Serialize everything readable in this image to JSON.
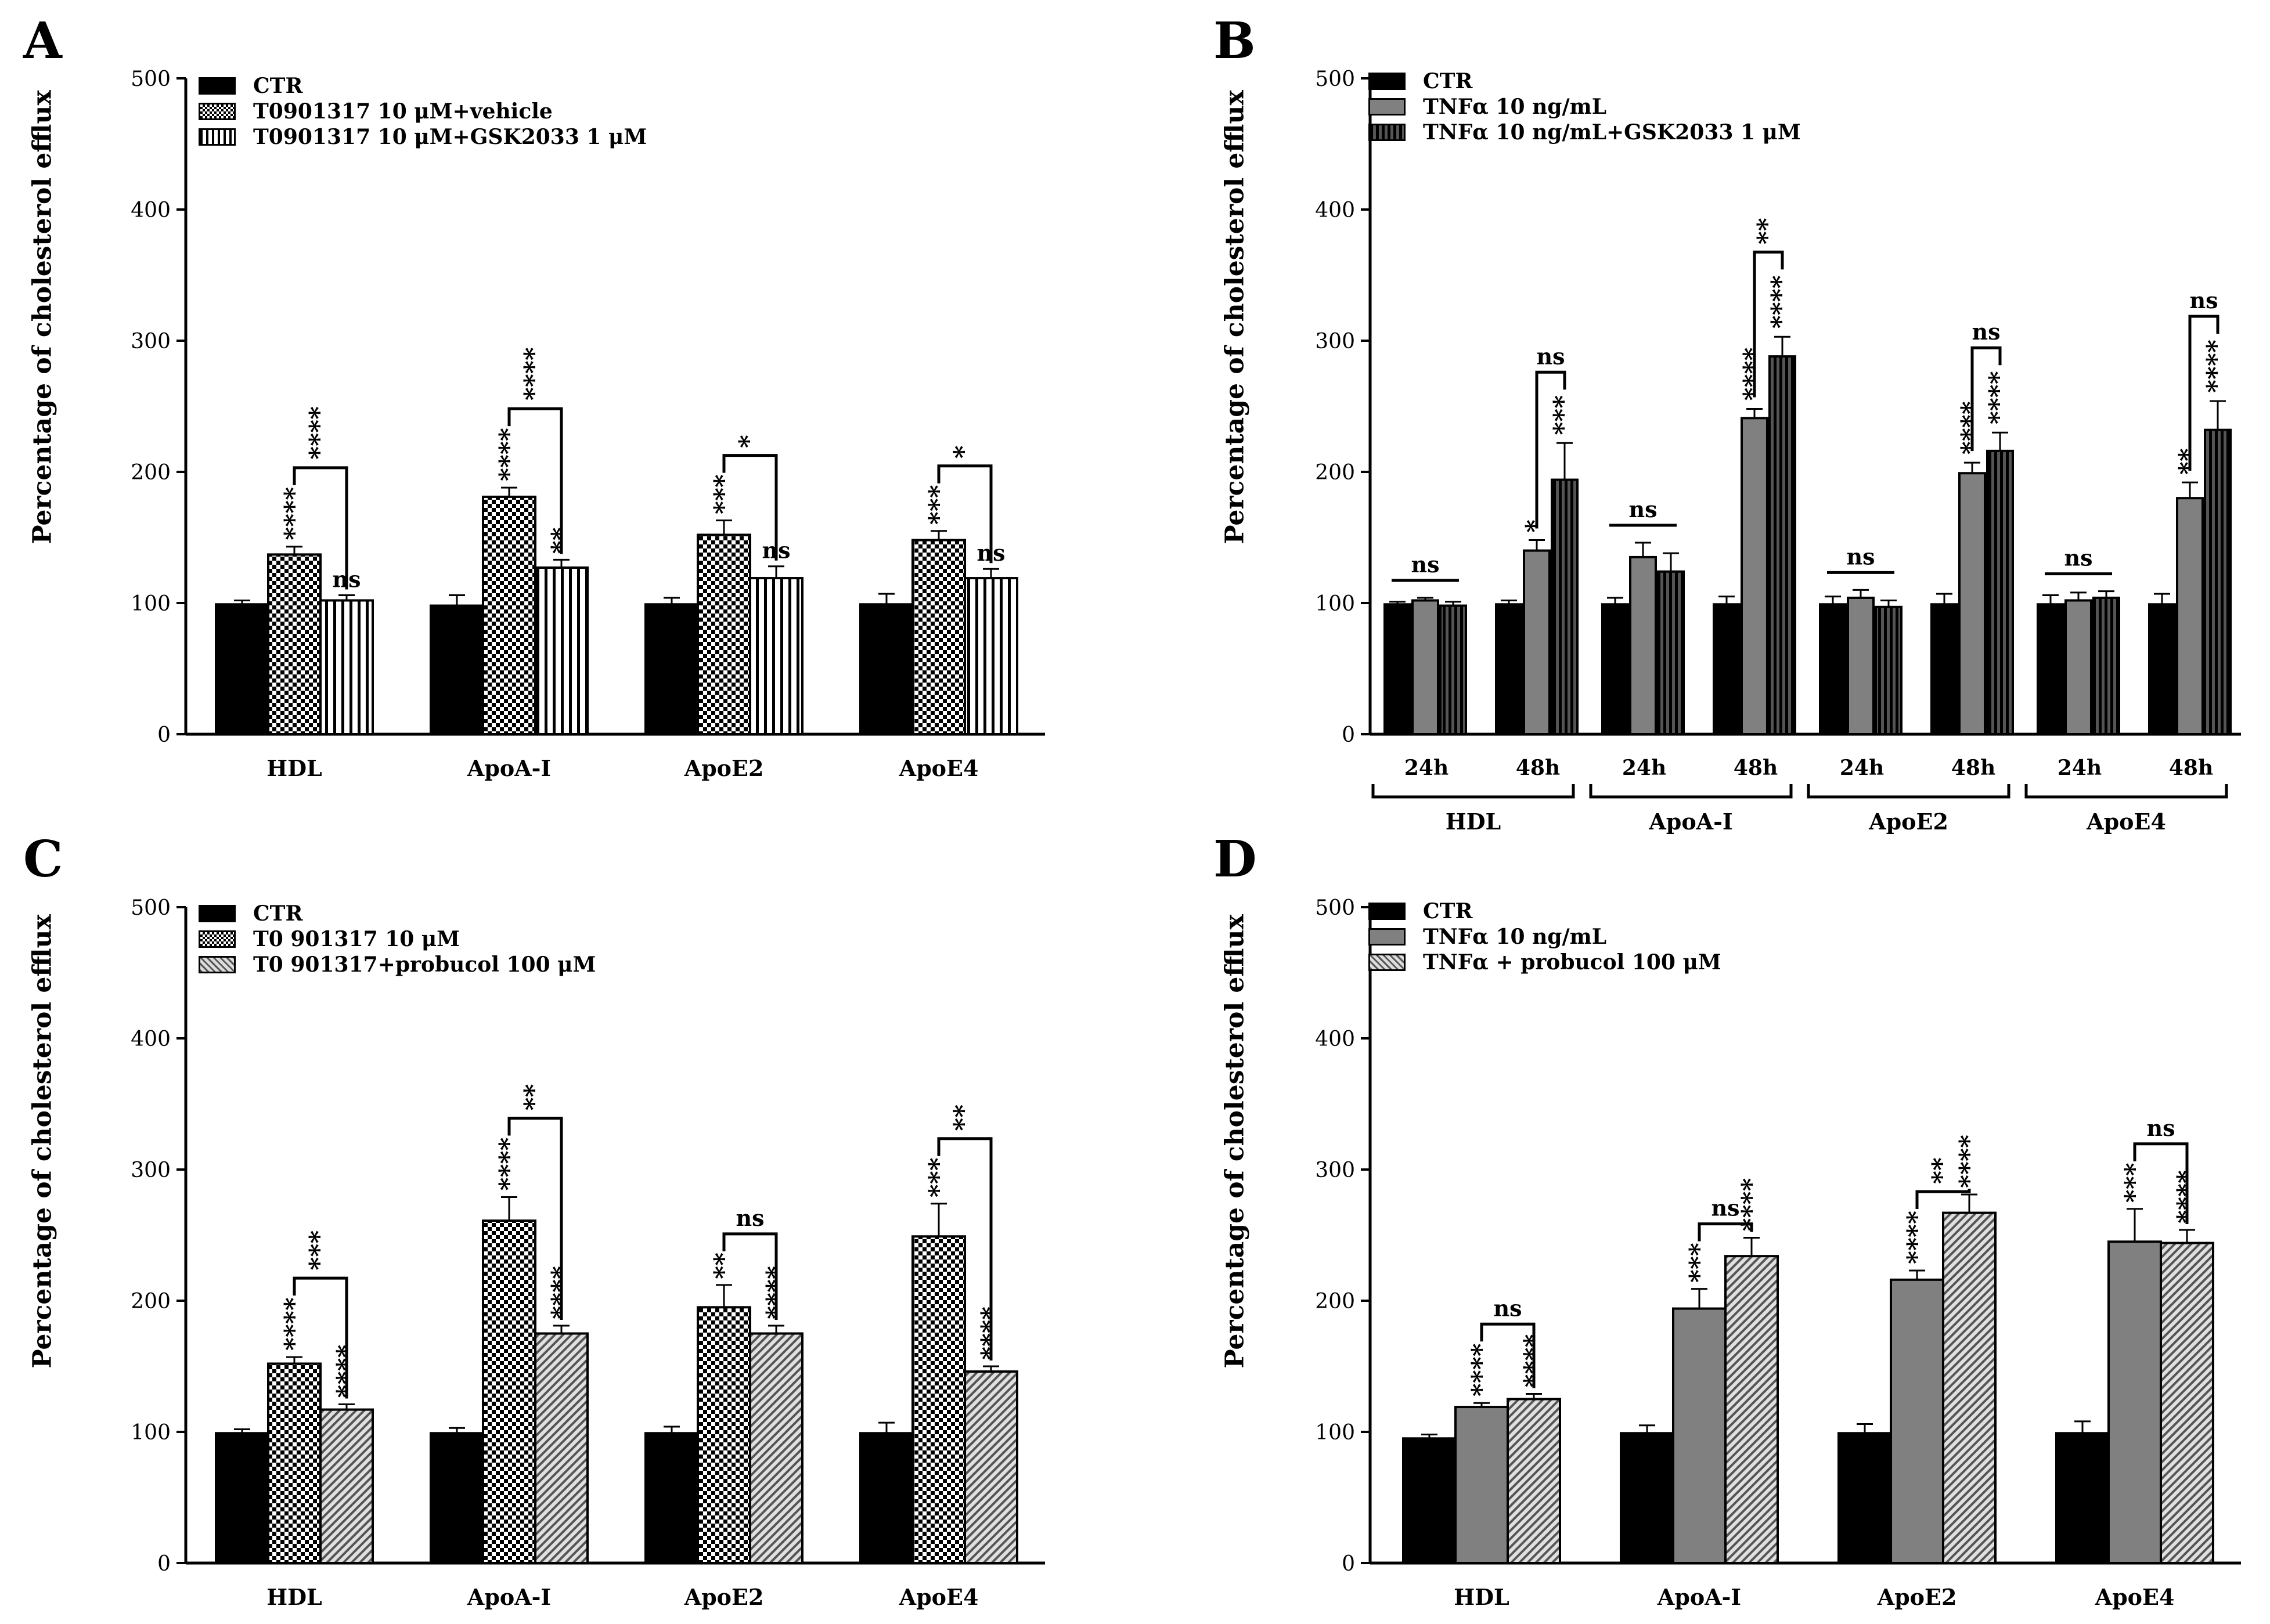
{
  "colors": {
    "ctr": "#000000",
    "grey": "#808080",
    "grey_dark": "#555555",
    "pattern_fill": "#ffffff"
  },
  "chart_data": [
    {
      "panel": "A",
      "type": "bar",
      "ylabel": "Percentage of cholesterol efflux",
      "ylim": [
        0,
        500
      ],
      "yticks": [
        0,
        100,
        200,
        300,
        400,
        500
      ],
      "categories": [
        "HDL",
        "ApoA-I",
        "ApoE2",
        "ApoE4"
      ],
      "legend_position": "top-left",
      "series": [
        {
          "name": "CTR",
          "style": "solid-black",
          "values": [
            99,
            98,
            99,
            99
          ],
          "errors": [
            3,
            8,
            5,
            8
          ],
          "stars": [
            "",
            "",
            "",
            ""
          ]
        },
        {
          "name": "T0901317 10 μM+vehicle",
          "style": "checker",
          "values": [
            137,
            181,
            152,
            148
          ],
          "errors": [
            6,
            7,
            11,
            7
          ],
          "stars": [
            "****",
            "****",
            "***",
            "***"
          ]
        },
        {
          "name": "T0901317 10 μM+GSK2033 1 μM",
          "style": "vstripe",
          "values": [
            102,
            127,
            119,
            119
          ],
          "errors": [
            4,
            6,
            9,
            7
          ],
          "stars": [
            "ns",
            "**",
            "ns",
            "ns"
          ]
        }
      ],
      "comparisons": [
        "****",
        "****",
        "*",
        "*"
      ]
    },
    {
      "panel": "B",
      "type": "bar",
      "ylabel": "Percentage of cholesterol efflux",
      "ylim": [
        0,
        500
      ],
      "yticks": [
        0,
        100,
        200,
        300,
        400,
        500
      ],
      "groups": [
        "HDL",
        "ApoA-I",
        "ApoE2",
        "ApoE4"
      ],
      "timepoints": [
        "24h",
        "48h"
      ],
      "legend_position": "top-left",
      "series": [
        {
          "name": "CTR",
          "style": "solid-black",
          "values": [
            99,
            99,
            99,
            99,
            99,
            99,
            99,
            99
          ],
          "errors": [
            2,
            3,
            5,
            6,
            6,
            8,
            7,
            8
          ],
          "stars": [
            "",
            "",
            "",
            "",
            "",
            "",
            "",
            ""
          ]
        },
        {
          "name": "TNFα 10 ng/mL",
          "style": "solid-grey",
          "values": [
            102,
            140,
            135,
            241,
            104,
            199,
            102,
            180
          ],
          "errors": [
            2,
            8,
            11,
            7,
            6,
            8,
            6,
            12
          ],
          "stars": [
            "",
            "*",
            "",
            "****",
            "",
            "****",
            "",
            "**"
          ]
        },
        {
          "name": "TNFα 10 ng/mL+GSK2033 1 μM",
          "style": "dark-stripe",
          "values": [
            98,
            194,
            124,
            288,
            97,
            216,
            104,
            232
          ],
          "errors": [
            3,
            28,
            14,
            15,
            5,
            14,
            5,
            22
          ],
          "stars": [
            "",
            "***",
            "",
            "****",
            "",
            "****",
            "",
            "****"
          ]
        }
      ],
      "comparisons_24h": [
        "ns",
        "ns",
        "ns",
        "ns"
      ],
      "comparisons_48h": [
        "ns",
        "**",
        "ns",
        "ns"
      ]
    },
    {
      "panel": "C",
      "type": "bar",
      "ylabel": "Percentage of cholesterol efflux",
      "ylim": [
        0,
        500
      ],
      "yticks": [
        0,
        100,
        200,
        300,
        400,
        500
      ],
      "categories": [
        "HDL",
        "ApoA-I",
        "ApoE2",
        "ApoE4"
      ],
      "legend_position": "top-left",
      "series": [
        {
          "name": "CTR",
          "style": "solid-black",
          "values": [
            99,
            99,
            99,
            99
          ],
          "errors": [
            3,
            4,
            5,
            8
          ],
          "stars": [
            "",
            "",
            "",
            ""
          ]
        },
        {
          "name": "T0 901317 10 μM",
          "style": "checker",
          "values": [
            152,
            261,
            195,
            249
          ],
          "errors": [
            5,
            18,
            17,
            25
          ],
          "stars": [
            "****",
            "****",
            "**",
            "***"
          ]
        },
        {
          "name": "T0 901317+probucol 100 μM",
          "style": "diag-grey",
          "values": [
            117,
            175,
            175,
            146
          ],
          "errors": [
            4,
            6,
            6,
            4
          ],
          "stars": [
            "****",
            "****",
            "****",
            "****"
          ]
        }
      ],
      "comparisons": [
        "***",
        "**",
        "ns",
        "**"
      ]
    },
    {
      "panel": "D",
      "type": "bar",
      "ylabel": "Percentage of cholesterol efflux",
      "ylim": [
        0,
        500
      ],
      "yticks": [
        0,
        100,
        200,
        300,
        400,
        500
      ],
      "categories": [
        "HDL",
        "ApoA-I",
        "ApoE2",
        "ApoE4"
      ],
      "legend_position": "top-left",
      "series": [
        {
          "name": "CTR",
          "style": "solid-black",
          "values": [
            95,
            99,
            99,
            99
          ],
          "errors": [
            3,
            6,
            7,
            9
          ],
          "stars": [
            "",
            "",
            "",
            ""
          ]
        },
        {
          "name": "TNFα 10 ng/mL",
          "style": "solid-grey",
          "values": [
            119,
            194,
            216,
            245
          ],
          "errors": [
            3,
            15,
            7,
            25
          ],
          "stars": [
            "****",
            "***",
            "****",
            "***"
          ]
        },
        {
          "name": "TNFα + probucol 100 μM",
          "style": "diag-grey",
          "values": [
            125,
            234,
            267,
            244
          ],
          "errors": [
            4,
            14,
            14,
            10
          ],
          "stars": [
            "****",
            "****",
            "****",
            "****"
          ]
        }
      ],
      "comparisons": [
        "ns",
        "ns",
        "**",
        "ns"
      ]
    }
  ]
}
